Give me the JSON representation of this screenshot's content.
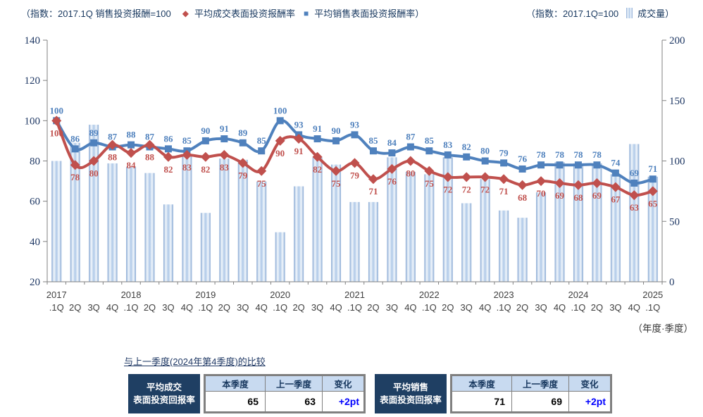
{
  "legend": {
    "left_index_note": "（指数：2017.1Q 销售投资报酬=100",
    "deal_series_label": "平均成交表面投资报酬率",
    "sales_series_label": "平均销售表面投资报酬率）",
    "right_index_note": "（指数：2017.1Q=100",
    "volume_label": "成交量）",
    "diamond_symbol": "◆",
    "square_symbol": "■"
  },
  "chart_data": {
    "type": "combo bar + line",
    "categories": [
      "2017.1Q",
      "2017.2Q",
      "2017.3Q",
      "2017.4Q",
      "2018.1Q",
      "2018.2Q",
      "2018.3Q",
      "2018.4Q",
      "2019.1Q",
      "2019.2Q",
      "2019.3Q",
      "2019.4Q",
      "2020.1Q",
      "2020.2Q",
      "2020.3Q",
      "2020.4Q",
      "2021.1Q",
      "2021.2Q",
      "2021.3Q",
      "2021.4Q",
      "2022.1Q",
      "2022.2Q",
      "2022.3Q",
      "2022.4Q",
      "2023.1Q",
      "2023.2Q",
      "2023.3Q",
      "2023.4Q",
      "2024.1Q",
      "2024.2Q",
      "2024.3Q",
      "2024.4Q",
      "2025.1Q"
    ],
    "x_quarter_labels": [
      ".1Q",
      "2Q",
      "3Q",
      "4Q",
      ".1Q",
      "2Q",
      "3Q",
      "4Q",
      ".1Q",
      "2Q",
      "3Q",
      "4Q",
      ".1Q",
      "2Q",
      "3Q",
      "4Q",
      ".1Q",
      "2Q",
      "3Q",
      "4Q",
      ".1Q",
      "2Q",
      "3Q",
      "4Q",
      ".1Q",
      "2Q",
      "3Q",
      "4Q",
      ".1Q",
      "2Q",
      "3Q",
      "4Q",
      ".1Q"
    ],
    "year_labels": [
      {
        "label": "2017",
        "slot": 0
      },
      {
        "label": "2018",
        "slot": 4
      },
      {
        "label": "2019",
        "slot": 8
      },
      {
        "label": "2020",
        "slot": 12
      },
      {
        "label": "2021",
        "slot": 16
      },
      {
        "label": "2022",
        "slot": 20
      },
      {
        "label": "2023",
        "slot": 24
      },
      {
        "label": "2024",
        "slot": 28
      },
      {
        "label": "2025",
        "slot": 32
      }
    ],
    "series": [
      {
        "name": "成交量",
        "type": "bar",
        "axis": "right",
        "values": [
          100,
          115,
          130,
          98,
          95,
          90,
          64,
          105,
          57,
          102,
          101,
          83,
          41,
          79,
          103,
          97,
          66,
          66,
          103,
          91,
          89,
          103,
          65,
          85,
          59,
          53,
          74,
          99,
          98,
          98,
          89,
          114,
          87
        ]
      },
      {
        "name": "平均销售表面投资报酬率",
        "type": "line",
        "marker": "square",
        "axis": "left",
        "color": "#4F81BD",
        "values": [
          100,
          86,
          89,
          87,
          88,
          87,
          86,
          85,
          90,
          91,
          89,
          85,
          100,
          93,
          91,
          90,
          93,
          85,
          84,
          87,
          85,
          83,
          82,
          80,
          79,
          76,
          78,
          78,
          78,
          78,
          74,
          69,
          71
        ]
      },
      {
        "name": "平均成交表面投资报酬率",
        "type": "line",
        "marker": "diamond",
        "axis": "left",
        "color": "#C0504D",
        "values": [
          100,
          78,
          80,
          88,
          84,
          88,
          82,
          83,
          82,
          83,
          79,
          75,
          90,
          91,
          82,
          75,
          79,
          71,
          76,
          80,
          75,
          72,
          72,
          72,
          71,
          68,
          70,
          69,
          68,
          69,
          67,
          63,
          65
        ]
      }
    ],
    "left_axis": {
      "min": 20,
      "max": 140,
      "step": 20,
      "ticks": [
        "20",
        "40",
        "60",
        "80",
        "100",
        "120",
        "140"
      ]
    },
    "right_axis": {
      "min": 0,
      "max": 200,
      "step": 50,
      "ticks": [
        "0",
        "50",
        "100",
        "150",
        "200"
      ]
    },
    "grid": false,
    "axis_note": "（年度·季度）"
  },
  "comparison": {
    "title": "与上一季度(2024年第4季度)的比较",
    "col_headers": [
      "本季度",
      "上一季度",
      "变化"
    ],
    "tables": [
      {
        "row_label_line1": "平均成交",
        "row_label_line2": "表面投资回报率",
        "current": "65",
        "previous": "63",
        "change": "+2pt"
      },
      {
        "row_label_line1": "平均销售",
        "row_label_line2": "表面投资回报率",
        "current": "71",
        "previous": "69",
        "change": "+2pt"
      }
    ]
  },
  "colors": {
    "sales_line": "#4F81BD",
    "deal_line": "#C0504D",
    "bar_edge": "#88A9D4",
    "bar_mid": "#AFC9E8",
    "bar_light": "#F2F7FC",
    "legend_text": "#17375E",
    "axis_text": "#1F3864",
    "x_label_text": "#3F3F3F",
    "table_label_bg": "#1F3F63",
    "table_header_bg": "#C8DAF0",
    "change_text": "#0000FF",
    "table_border": "#808080"
  }
}
